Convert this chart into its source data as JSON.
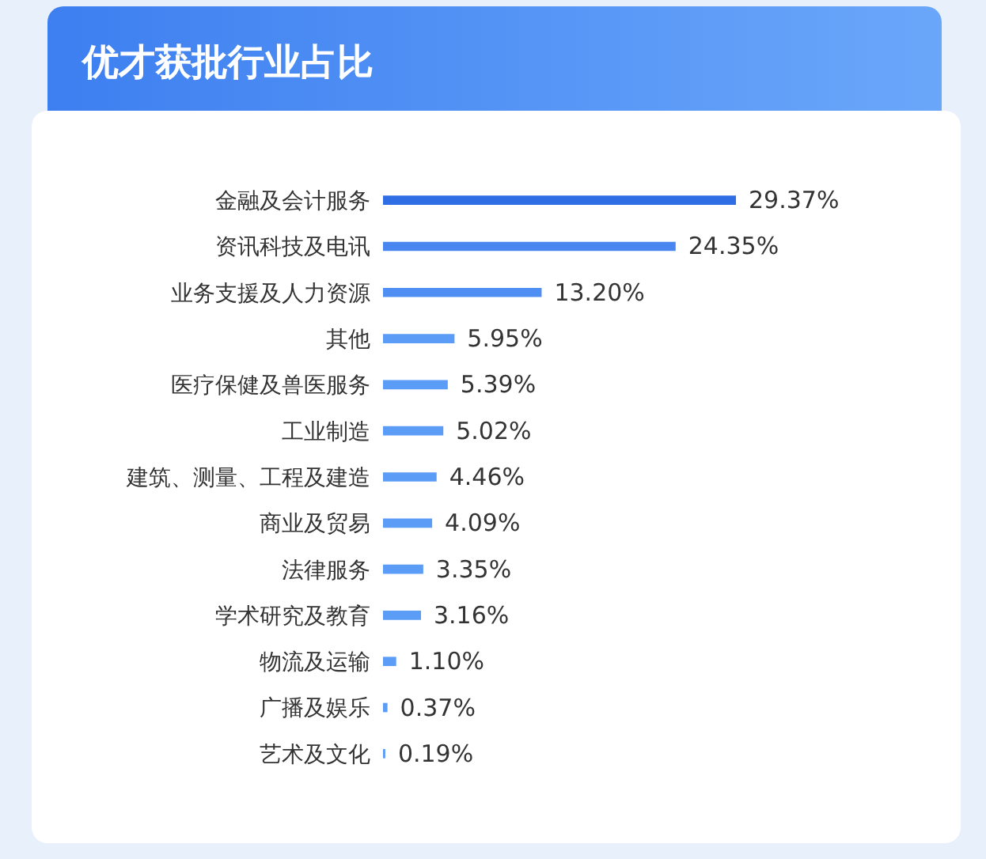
{
  "chart_data": {
    "type": "bar",
    "orientation": "horizontal",
    "title": "优才获批行业占比",
    "categories": [
      "金融及会计服务",
      "资讯科技及电讯",
      "业务支援及人力资源",
      "其他",
      "医疗保健及兽医服务",
      "工业制造",
      "建筑、测量、工程及建造",
      "商业及贸易",
      "法律服务",
      "学术研究及教育",
      "物流及运输",
      "广播及娱乐",
      "艺术及文化"
    ],
    "values": [
      29.37,
      24.35,
      13.2,
      5.95,
      5.39,
      5.02,
      4.46,
      4.09,
      3.35,
      3.16,
      1.1,
      0.37,
      0.19
    ],
    "colors": [
      "#2f6de4",
      "#4a86f0",
      "#4f8ff3",
      "#5b9cf7",
      "#5b9cf7",
      "#5b9cf7",
      "#5b9cf7",
      "#5b9cf7",
      "#5b9cf7",
      "#5b9cf7",
      "#5b9cf7",
      "#5b9cf7",
      "#5b9cf7"
    ],
    "value_labels": [
      "29.37%",
      "24.35%",
      "13.20%",
      "5.95%",
      "5.39%",
      "5.02%",
      "4.46%",
      "4.09%",
      "3.35%",
      "3.16%",
      "1.10%",
      "0.37%",
      "0.19%"
    ]
  }
}
